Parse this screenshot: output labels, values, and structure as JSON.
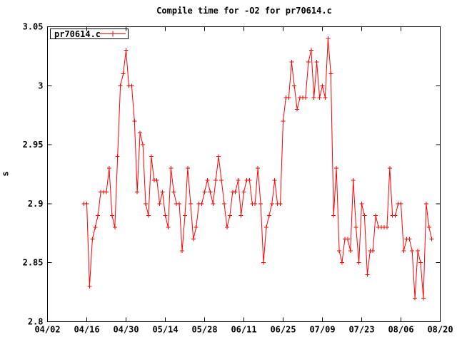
{
  "title": "Compile time for -O2 for pr70614.c",
  "legend": {
    "label": "pr70614.c"
  },
  "axes": {
    "ylabel": "s",
    "ytick_labels": [
      "2.8",
      "2.85",
      "2.9",
      "2.95",
      "3",
      "3.05"
    ],
    "xtick_labels": [
      "04/02",
      "04/16",
      "04/30",
      "05/14",
      "05/28",
      "06/11",
      "06/25",
      "07/09",
      "07/23",
      "08/06",
      "08/20"
    ]
  },
  "colors": {
    "background": "#ffffff",
    "border": "#000000",
    "text": "#000000",
    "series": "#ff0000"
  },
  "chart_data": {
    "type": "line",
    "title": "Compile time for -O2 for pr70614.c",
    "xlabel": "",
    "ylabel": "s",
    "ylim": [
      2.8,
      3.05
    ],
    "x_range_days": [
      "04/02",
      "08/20"
    ],
    "xtick_labels": [
      "04/02",
      "04/16",
      "04/30",
      "05/14",
      "05/28",
      "06/11",
      "06/25",
      "07/09",
      "07/23",
      "08/06",
      "08/20"
    ],
    "ytick_values": [
      2.8,
      2.85,
      2.9,
      2.95,
      3,
      3.05
    ],
    "ytick_labels": [
      "2.8",
      "2.85",
      "2.9",
      "2.95",
      "3",
      "3.05"
    ],
    "grid": false,
    "legend_position": "top-left",
    "marker": "plus",
    "series": [
      {
        "name": "pr70614.c",
        "color": "#ff0000",
        "points": [
          [
            "04/15",
            2.9
          ],
          [
            "04/16",
            2.9
          ],
          [
            "04/17",
            2.83
          ],
          [
            "04/18",
            2.87
          ],
          [
            "04/19",
            2.88
          ],
          [
            "04/20",
            2.89
          ],
          [
            "04/21",
            2.91
          ],
          [
            "04/22",
            2.91
          ],
          [
            "04/23",
            2.91
          ],
          [
            "04/24",
            2.93
          ],
          [
            "04/25",
            2.89
          ],
          [
            "04/26",
            2.88
          ],
          [
            "04/27",
            2.94
          ],
          [
            "04/28",
            3.0
          ],
          [
            "04/29",
            3.01
          ],
          [
            "04/30",
            3.03
          ],
          [
            "05/01",
            3.0
          ],
          [
            "05/02",
            3.0
          ],
          [
            "05/03",
            2.97
          ],
          [
            "05/04",
            2.91
          ],
          [
            "05/05",
            2.96
          ],
          [
            "05/06",
            2.95
          ],
          [
            "05/07",
            2.9
          ],
          [
            "05/08",
            2.89
          ],
          [
            "05/09",
            2.94
          ],
          [
            "05/10",
            2.92
          ],
          [
            "05/11",
            2.92
          ],
          [
            "05/12",
            2.9
          ],
          [
            "05/13",
            2.91
          ],
          [
            "05/14",
            2.89
          ],
          [
            "05/15",
            2.88
          ],
          [
            "05/16",
            2.93
          ],
          [
            "05/17",
            2.91
          ],
          [
            "05/18",
            2.9
          ],
          [
            "05/19",
            2.9
          ],
          [
            "05/20",
            2.86
          ],
          [
            "05/21",
            2.89
          ],
          [
            "05/22",
            2.93
          ],
          [
            "05/23",
            2.9
          ],
          [
            "05/24",
            2.87
          ],
          [
            "05/25",
            2.88
          ],
          [
            "05/26",
            2.9
          ],
          [
            "05/27",
            2.9
          ],
          [
            "05/28",
            2.91
          ],
          [
            "05/29",
            2.92
          ],
          [
            "05/30",
            2.91
          ],
          [
            "05/31",
            2.9
          ],
          [
            "06/01",
            2.92
          ],
          [
            "06/02",
            2.94
          ],
          [
            "06/03",
            2.92
          ],
          [
            "06/04",
            2.9
          ],
          [
            "06/05",
            2.88
          ],
          [
            "06/06",
            2.89
          ],
          [
            "06/07",
            2.91
          ],
          [
            "06/08",
            2.91
          ],
          [
            "06/09",
            2.92
          ],
          [
            "06/10",
            2.89
          ],
          [
            "06/11",
            2.91
          ],
          [
            "06/12",
            2.92
          ],
          [
            "06/13",
            2.92
          ],
          [
            "06/14",
            2.9
          ],
          [
            "06/15",
            2.9
          ],
          [
            "06/16",
            2.93
          ],
          [
            "06/17",
            2.9
          ],
          [
            "06/18",
            2.85
          ],
          [
            "06/19",
            2.88
          ],
          [
            "06/20",
            2.89
          ],
          [
            "06/21",
            2.9
          ],
          [
            "06/22",
            2.92
          ],
          [
            "06/23",
            2.9
          ],
          [
            "06/24",
            2.9
          ],
          [
            "06/25",
            2.97
          ],
          [
            "06/26",
            2.99
          ],
          [
            "06/27",
            2.99
          ],
          [
            "06/28",
            3.02
          ],
          [
            "06/29",
            3.0
          ],
          [
            "06/30",
            2.98
          ],
          [
            "07/01",
            2.99
          ],
          [
            "07/02",
            2.99
          ],
          [
            "07/03",
            2.99
          ],
          [
            "07/04",
            3.02
          ],
          [
            "07/05",
            3.03
          ],
          [
            "07/06",
            2.99
          ],
          [
            "07/07",
            3.02
          ],
          [
            "07/08",
            2.99
          ],
          [
            "07/09",
            3.0
          ],
          [
            "07/10",
            2.99
          ],
          [
            "07/11",
            3.04
          ],
          [
            "07/12",
            3.01
          ],
          [
            "07/13",
            2.89
          ],
          [
            "07/14",
            2.93
          ],
          [
            "07/15",
            2.86
          ],
          [
            "07/16",
            2.85
          ],
          [
            "07/17",
            2.87
          ],
          [
            "07/18",
            2.87
          ],
          [
            "07/19",
            2.86
          ],
          [
            "07/20",
            2.92
          ],
          [
            "07/21",
            2.88
          ],
          [
            "07/22",
            2.85
          ],
          [
            "07/23",
            2.9
          ],
          [
            "07/24",
            2.89
          ],
          [
            "07/25",
            2.84
          ],
          [
            "07/26",
            2.86
          ],
          [
            "07/27",
            2.86
          ],
          [
            "07/28",
            2.89
          ],
          [
            "07/29",
            2.88
          ],
          [
            "07/30",
            2.88
          ],
          [
            "07/31",
            2.88
          ],
          [
            "08/01",
            2.88
          ],
          [
            "08/02",
            2.93
          ],
          [
            "08/03",
            2.89
          ],
          [
            "08/04",
            2.89
          ],
          [
            "08/05",
            2.9
          ],
          [
            "08/06",
            2.9
          ],
          [
            "08/07",
            2.86
          ],
          [
            "08/08",
            2.87
          ],
          [
            "08/09",
            2.87
          ],
          [
            "08/10",
            2.86
          ],
          [
            "08/11",
            2.82
          ],
          [
            "08/12",
            2.86
          ],
          [
            "08/13",
            2.85
          ],
          [
            "08/14",
            2.82
          ],
          [
            "08/15",
            2.9
          ],
          [
            "08/16",
            2.88
          ],
          [
            "08/17",
            2.87
          ]
        ]
      }
    ]
  }
}
